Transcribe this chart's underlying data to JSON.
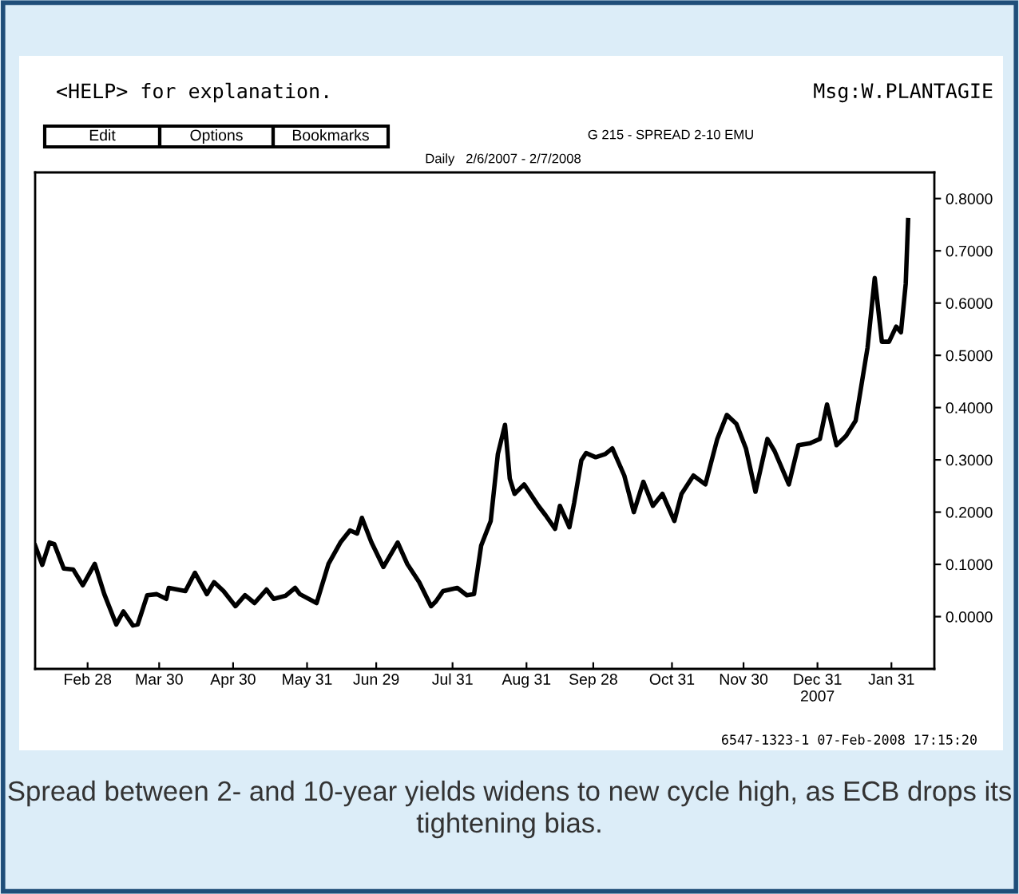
{
  "chart_data": {
    "type": "line",
    "title": "G 215 - SPREAD 2-10 EMU",
    "subtitle": "Daily   2/6/2007 - 2/7/2008",
    "annotations": [
      "<HELP> for explanation.",
      "Msg:W.PLANTAGIE",
      "Edit",
      "Options",
      "Bookmarks",
      "6547-1323-1 07-Feb-2008 17:15:20",
      "Spread between 2- and 10-year yields widens to new cycle high, as ECB drops its tightening bias."
    ],
    "x": [
      "2007-02-06",
      "2007-02-09",
      "2007-02-12",
      "2007-02-14",
      "2007-02-18",
      "2007-02-22",
      "2007-02-26",
      "2007-03-03",
      "2007-03-07",
      "2007-03-12",
      "2007-03-15",
      "2007-03-19",
      "2007-03-21",
      "2007-03-25",
      "2007-03-29",
      "2007-04-02",
      "2007-04-03",
      "2007-04-10",
      "2007-04-14",
      "2007-04-19",
      "2007-04-22",
      "2007-04-26",
      "2007-05-01",
      "2007-05-05",
      "2007-05-09",
      "2007-05-14",
      "2007-05-17",
      "2007-05-22",
      "2007-05-26",
      "2007-05-28",
      "2007-06-04",
      "2007-06-09",
      "2007-06-14",
      "2007-06-18",
      "2007-06-21",
      "2007-06-23",
      "2007-06-27",
      "2007-07-02",
      "2007-07-08",
      "2007-07-12",
      "2007-07-17",
      "2007-07-22",
      "2007-07-24",
      "2007-07-27",
      "2007-08-02",
      "2007-08-06",
      "2007-08-09",
      "2007-08-12",
      "2007-08-16",
      "2007-08-19",
      "2007-08-22",
      "2007-08-24",
      "2007-08-26",
      "2007-08-30",
      "2007-09-05",
      "2007-09-08",
      "2007-09-12",
      "2007-09-14",
      "2007-09-18",
      "2007-09-20",
      "2007-09-23",
      "2007-09-25",
      "2007-09-29",
      "2007-10-03",
      "2007-10-06",
      "2007-10-11",
      "2007-10-15",
      "2007-10-19",
      "2007-10-23",
      "2007-10-27",
      "2007-11-01",
      "2007-11-04",
      "2007-11-09",
      "2007-11-14",
      "2007-11-19",
      "2007-11-23",
      "2007-11-27",
      "2007-12-01",
      "2007-12-05",
      "2007-12-10",
      "2007-12-13",
      "2007-12-19",
      "2007-12-23",
      "2007-12-28",
      "2008-01-01",
      "2008-01-04",
      "2008-01-08",
      "2008-01-12",
      "2008-01-16",
      "2008-01-21",
      "2008-01-24",
      "2008-01-27",
      "2008-01-30",
      "2008-02-02",
      "2008-02-04",
      "2008-02-06",
      "2008-02-07"
    ],
    "series": [
      {
        "color": "#000000",
        "values": [
          0.136,
          0.099,
          0.142,
          0.139,
          0.092,
          0.09,
          0.06,
          0.101,
          0.043,
          -0.015,
          0.01,
          -0.017,
          -0.015,
          0.041,
          0.043,
          0.034,
          0.055,
          0.049,
          0.084,
          0.043,
          0.066,
          0.049,
          0.02,
          0.041,
          0.026,
          0.052,
          0.034,
          0.04,
          0.055,
          0.043,
          0.026,
          0.101,
          0.142,
          0.165,
          0.159,
          0.189,
          0.142,
          0.095,
          0.142,
          0.101,
          0.066,
          0.02,
          0.029,
          0.049,
          0.055,
          0.041,
          0.043,
          0.136,
          0.183,
          0.311,
          0.367,
          0.264,
          0.235,
          0.253,
          0.212,
          0.194,
          0.168,
          0.212,
          0.171,
          0.218,
          0.299,
          0.313,
          0.305,
          0.311,
          0.322,
          0.27,
          0.2,
          0.258,
          0.212,
          0.235,
          0.183,
          0.235,
          0.27,
          0.253,
          0.34,
          0.386,
          0.369,
          0.322,
          0.239,
          0.34,
          0.317,
          0.253,
          0.328,
          0.332,
          0.34,
          0.406,
          0.328,
          0.346,
          0.375,
          0.515,
          0.648,
          0.526,
          0.526,
          0.555,
          0.544,
          0.637,
          0.759
        ]
      }
    ],
    "xlim": [
      "2007-02-06",
      "2008-02-18"
    ],
    "ylim": [
      -0.1,
      0.85
    ],
    "xticks": [
      {
        "value": "2007-02-28",
        "label": "Feb 28"
      },
      {
        "value": "2007-03-30",
        "label": "Mar 30"
      },
      {
        "value": "2007-04-30",
        "label": "Apr 30"
      },
      {
        "value": "2007-05-31",
        "label": "May 31"
      },
      {
        "value": "2007-06-29",
        "label": "Jun 29"
      },
      {
        "value": "2007-07-31",
        "label": "Jul 31"
      },
      {
        "value": "2007-08-31",
        "label": "Aug 31"
      },
      {
        "value": "2007-09-28",
        "label": "Sep 28"
      },
      {
        "value": "2007-10-31",
        "label": "Oct 31"
      },
      {
        "value": "2007-11-30",
        "label": "Nov 30"
      },
      {
        "value": "2007-12-31",
        "label": "Dec 31\n2007"
      },
      {
        "value": "2008-01-31",
        "label": "Jan 31"
      }
    ],
    "yticks": [
      {
        "value": 0.0,
        "label": "0.0000"
      },
      {
        "value": 0.1,
        "label": "0.1000"
      },
      {
        "value": 0.2,
        "label": "0.2000"
      },
      {
        "value": 0.3,
        "label": "0.3000"
      },
      {
        "value": 0.4,
        "label": "0.4000"
      },
      {
        "value": 0.5,
        "label": "0.5000"
      },
      {
        "value": 0.6,
        "label": "0.6000"
      },
      {
        "value": 0.7,
        "label": "0.7000"
      },
      {
        "value": 0.8,
        "label": "0.8000"
      }
    ],
    "line_style": "solid"
  }
}
